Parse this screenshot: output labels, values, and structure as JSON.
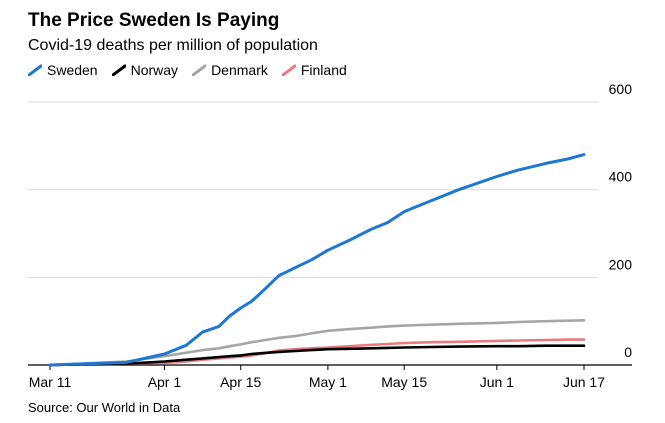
{
  "header": {
    "title": "The Price Sweden Is Paying",
    "subtitle": "Covid-19 deaths per million of population"
  },
  "footer": {
    "source": "Source: Our World in Data"
  },
  "chart_data": {
    "type": "line",
    "title": "The Price Sweden Is Paying",
    "subtitle": "Covid-19 deaths per million of population",
    "xlabel": "",
    "ylabel": "",
    "x": [
      "2020-03-11",
      "2020-03-25",
      "2020-04-01",
      "2020-04-05",
      "2020-04-08",
      "2020-04-11",
      "2020-04-13",
      "2020-04-15",
      "2020-04-17",
      "2020-04-20",
      "2020-04-22",
      "2020-04-25",
      "2020-04-28",
      "2020-05-01",
      "2020-05-05",
      "2020-05-09",
      "2020-05-12",
      "2020-05-15",
      "2020-05-20",
      "2020-05-25",
      "2020-06-01",
      "2020-06-05",
      "2020-06-10",
      "2020-06-14",
      "2020-06-17"
    ],
    "x_ticks": [
      "Mar 11",
      "Apr 1",
      "Apr 15",
      "May 1",
      "May 15",
      "Jun 1",
      "Jun 17"
    ],
    "x_tick_dates": [
      "2020-03-11",
      "2020-04-01",
      "2020-04-15",
      "2020-05-01",
      "2020-05-15",
      "2020-06-01",
      "2020-06-17"
    ],
    "ylim": [
      0,
      600
    ],
    "y_ticks": [
      0,
      200,
      400,
      600
    ],
    "grid": "horizontal",
    "legend_position": "top-left",
    "series": [
      {
        "name": "Sweden",
        "color": "#1f77d0",
        "values": [
          0,
          6,
          25,
          45,
          75,
          88,
          112,
          130,
          145,
          180,
          204,
          222,
          240,
          262,
          285,
          310,
          325,
          350,
          375,
          400,
          430,
          445,
          460,
          470,
          480
        ]
      },
      {
        "name": "Norway",
        "color": "#000000",
        "values": [
          0,
          3,
          8,
          12,
          15,
          18,
          20,
          22,
          25,
          28,
          30,
          32,
          34,
          36,
          37,
          38,
          39,
          40,
          41,
          42,
          43,
          43,
          44,
          44,
          44
        ]
      },
      {
        "name": "Denmark",
        "color": "#a6a6a6",
        "values": [
          0,
          8,
          20,
          28,
          34,
          38,
          43,
          47,
          52,
          58,
          62,
          66,
          72,
          78,
          82,
          85,
          88,
          90,
          92,
          94,
          96,
          98,
          100,
          101,
          102
        ]
      },
      {
        "name": "Finland",
        "color": "#e87b80",
        "values": [
          0,
          3,
          5,
          8,
          12,
          15,
          17,
          19,
          22,
          28,
          33,
          36,
          38,
          40,
          43,
          46,
          48,
          50,
          52,
          53,
          55,
          56,
          57,
          58,
          58
        ]
      }
    ]
  }
}
